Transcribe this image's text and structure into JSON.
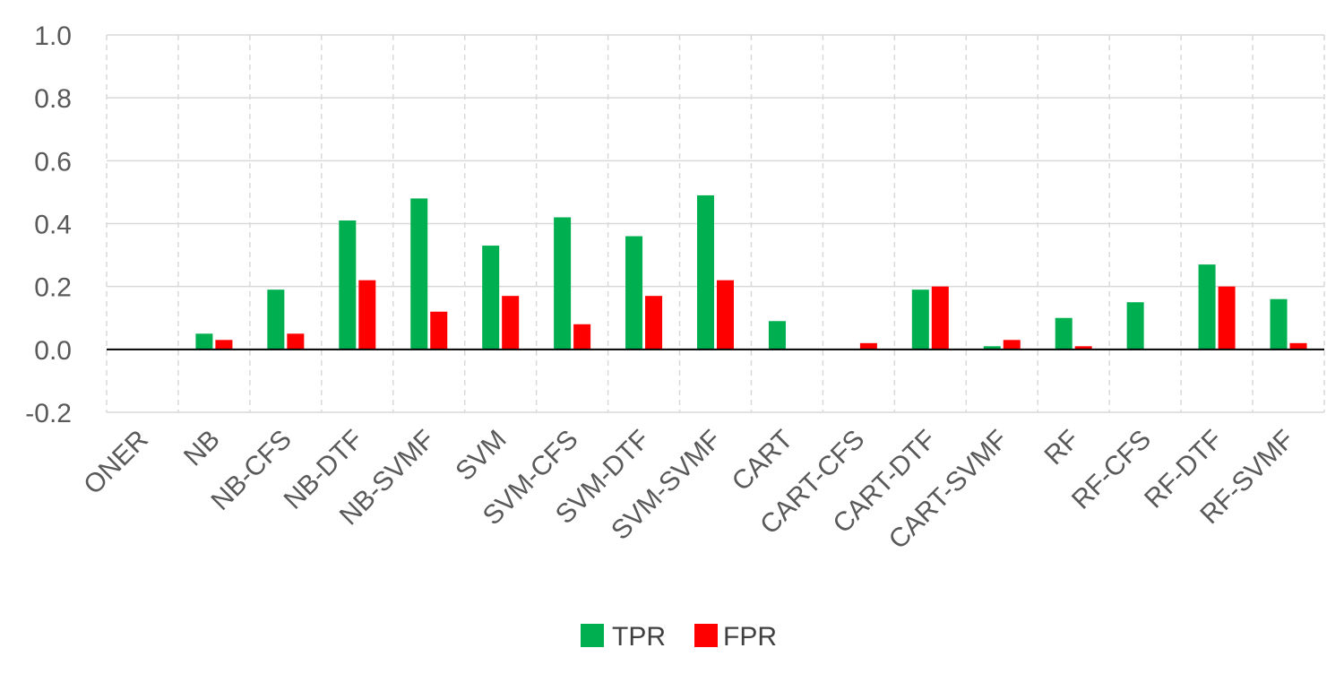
{
  "chart_data": {
    "type": "bar",
    "title": "",
    "xlabel": "",
    "ylabel": "",
    "ylim": [
      -0.2,
      1.0
    ],
    "yticks": [
      "1.0",
      "0.8",
      "0.6",
      "0.4",
      "0.2",
      "0.0",
      "-0.2"
    ],
    "ytick_values": [
      1.0,
      0.8,
      0.6,
      0.4,
      0.2,
      0.0,
      -0.2
    ],
    "grid": true,
    "legend_position": "bottom",
    "categories": [
      "ONER",
      "NB",
      "NB-CFS",
      "NB-DTF",
      "NB-SVMF",
      "SVM",
      "SVM-CFS",
      "SVM-DTF",
      "SVM-SVMF",
      "CART",
      "CART-CFS",
      "CART-DTF",
      "CART-SVMF",
      "RF",
      "RF-CFS",
      "RF-DTF",
      "RF-SVMF"
    ],
    "series": [
      {
        "name": "TPR",
        "color": "#00b050",
        "values": [
          0,
          0.05,
          0.19,
          0.41,
          0.48,
          0.33,
          0.42,
          0.36,
          0.49,
          0.09,
          0,
          0.19,
          0.01,
          0.1,
          0.15,
          0.27,
          0.16
        ]
      },
      {
        "name": "FPR",
        "color": "#ff0000",
        "values": [
          0,
          0.03,
          0.05,
          0.22,
          0.12,
          0.17,
          0.08,
          0.17,
          0.22,
          0,
          0.02,
          0.2,
          0.03,
          0.01,
          0,
          0.2,
          0.02
        ]
      }
    ]
  }
}
